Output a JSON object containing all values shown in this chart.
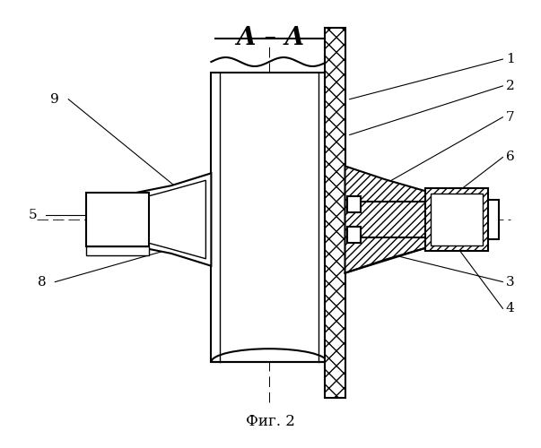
{
  "title": "A – A",
  "fig_label": "Фиг. 2",
  "bg_color": "#ffffff",
  "line_color": "#000000",
  "figsize": [
    6.03,
    5.0
  ],
  "dpi": 100
}
